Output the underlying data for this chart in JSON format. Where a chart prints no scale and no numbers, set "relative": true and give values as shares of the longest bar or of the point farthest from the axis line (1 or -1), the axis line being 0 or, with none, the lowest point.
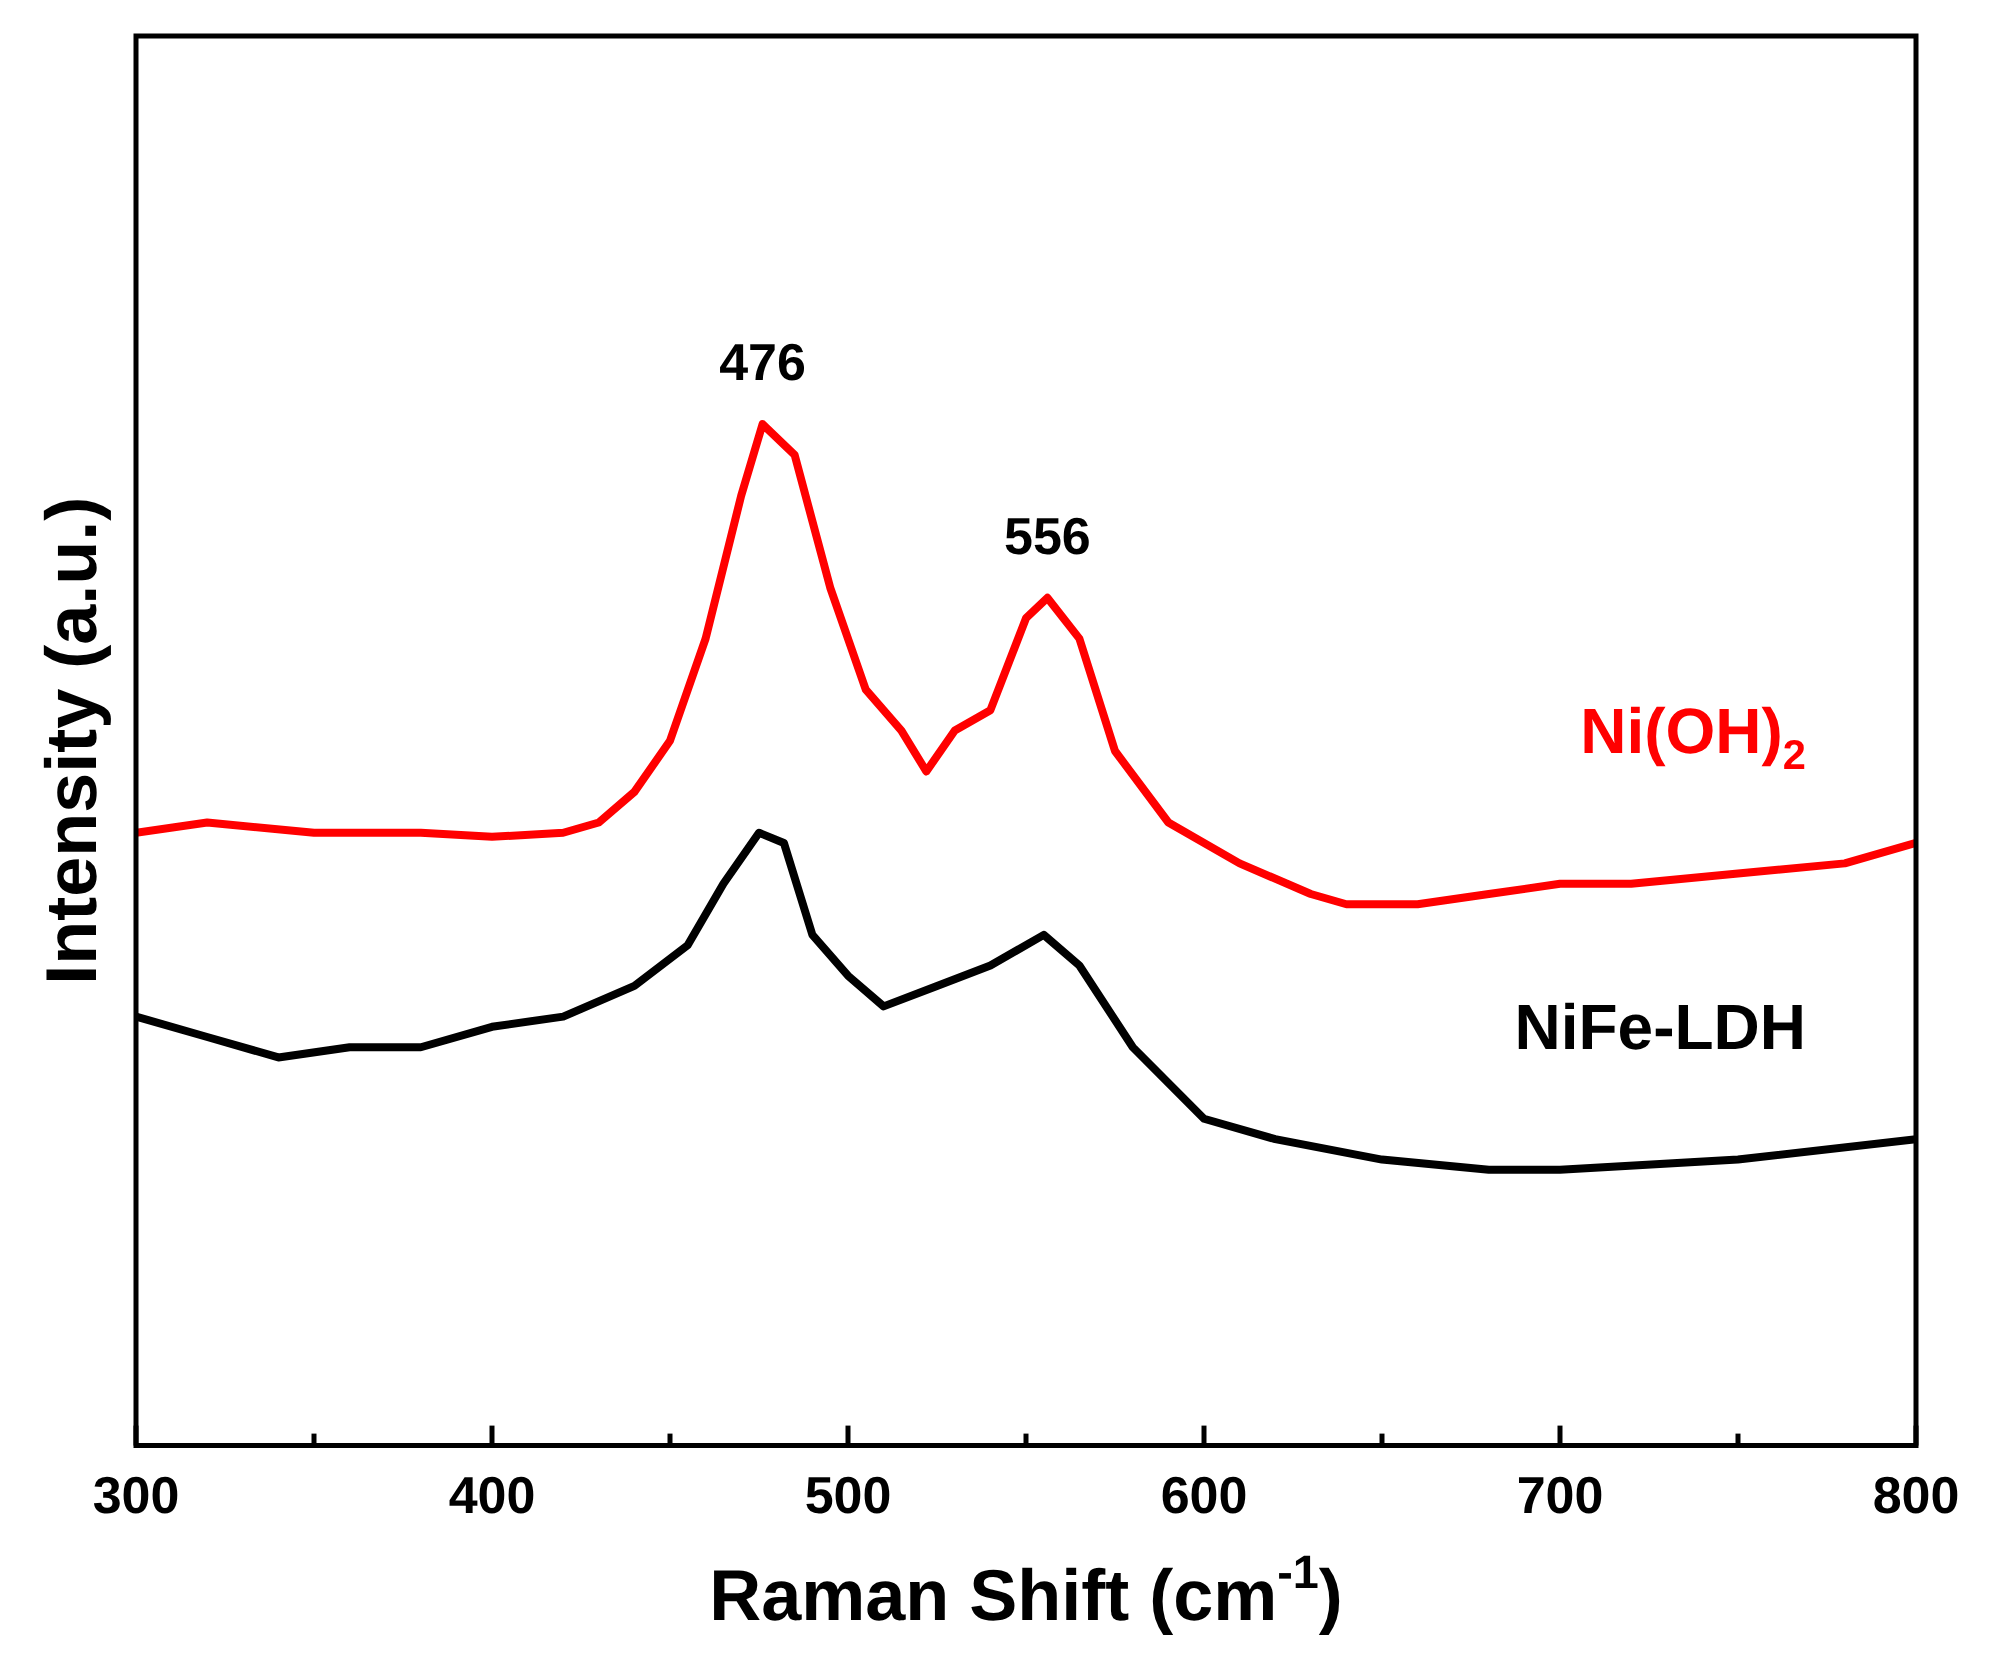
{
  "chart_data": {
    "type": "line",
    "relative": true,
    "xlabel": "Raman Shift (cm$^{-1}$)",
    "ylabel": "Intensity (a.u.)",
    "xlim": [
      300,
      800
    ],
    "xticks": [
      300,
      {
        "value": 350,
        "label": null
      },
      400,
      {
        "value": 450,
        "label": null
      },
      500,
      {
        "value": 550,
        "label": null
      },
      600,
      {
        "value": 650,
        "label": null
      },
      700,
      {
        "value": 750,
        "label": null
      },
      800
    ],
    "legend": false,
    "marker": "none",
    "line_style": "solid",
    "grid": false,
    "annotations": [
      {
        "text": "476",
        "x": 476,
        "y": 1.0
      },
      {
        "text": "556",
        "x": 556,
        "y": 0.83
      }
    ],
    "series": [
      {
        "name": "Ni(OH)$_{2}$",
        "color": "#ff0000",
        "x": [
          300,
          320,
          350,
          380,
          400,
          420,
          430,
          440,
          450,
          460,
          470,
          476,
          485,
          495,
          505,
          515,
          522,
          530,
          540,
          550,
          556,
          565,
          575,
          590,
          610,
          630,
          640,
          660,
          680,
          700,
          720,
          750,
          780,
          800
        ],
        "values": [
          0.6,
          0.61,
          0.6,
          0.6,
          0.596,
          0.6,
          0.61,
          0.64,
          0.69,
          0.79,
          0.93,
          1.0,
          0.97,
          0.84,
          0.74,
          0.7,
          0.66,
          0.7,
          0.72,
          0.81,
          0.83,
          0.79,
          0.68,
          0.61,
          0.57,
          0.54,
          0.53,
          0.53,
          0.54,
          0.55,
          0.55,
          0.56,
          0.57,
          0.59
        ]
      },
      {
        "name": "NiFe-LDH",
        "color": "#000000",
        "x": [
          300,
          320,
          340,
          360,
          380,
          400,
          420,
          440,
          455,
          465,
          475,
          482,
          490,
          500,
          510,
          525,
          540,
          555,
          565,
          580,
          600,
          620,
          650,
          680,
          700,
          750,
          800
        ],
        "values": [
          0.42,
          0.4,
          0.38,
          0.39,
          0.39,
          0.41,
          0.42,
          0.45,
          0.49,
          0.55,
          0.6,
          0.59,
          0.5,
          0.46,
          0.43,
          0.45,
          0.47,
          0.5,
          0.47,
          0.39,
          0.32,
          0.3,
          0.28,
          0.27,
          0.27,
          0.28,
          0.3
        ]
      }
    ]
  }
}
